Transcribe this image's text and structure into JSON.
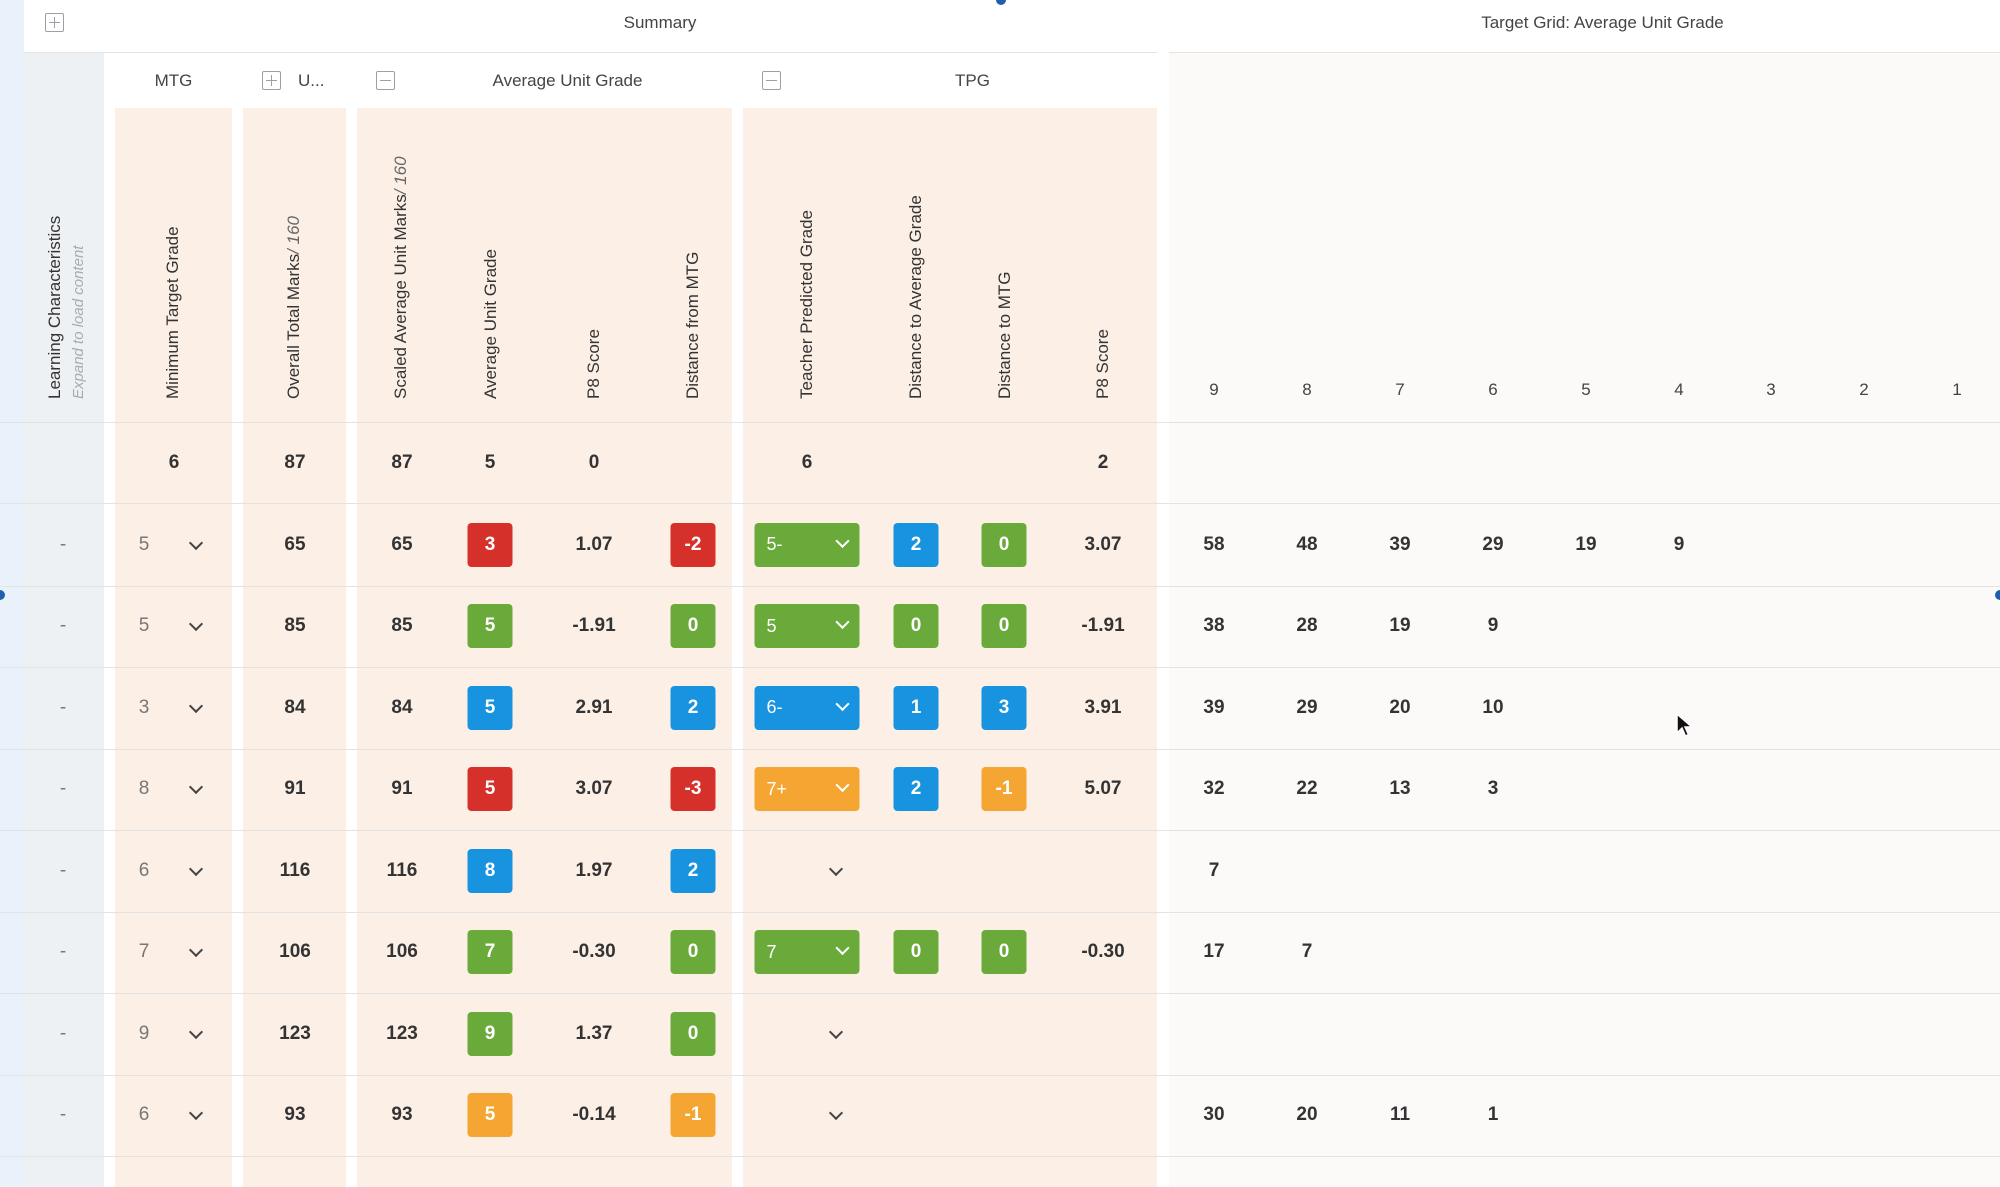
{
  "colors": {
    "red": "#d6302a",
    "green": "#6aaa3a",
    "blue": "#1793e0",
    "orange": "#f5a531"
  },
  "top_headers": {
    "summary": "Summary",
    "target_grid": "Target Grid: Average Unit Grade"
  },
  "group_headers": {
    "mtg": "MTG",
    "u": "U...",
    "avg_unit_grade": "Average Unit Grade",
    "tpg": "TPG"
  },
  "columns": {
    "learning_characteristics": "Learning Characteristics",
    "learning_hint": "Expand to load content",
    "min_target_grade": "Minimum Target Grade",
    "overall_total_marks": "Overall Total Marks",
    "overall_total_marks_suffix": "/ 160",
    "scaled_avg": "Scaled Average Unit Marks",
    "scaled_avg_suffix": "/ 160",
    "avg_unit_grade": "Average Unit Grade",
    "p8_score": "P8 Score",
    "distance_from_mtg": "Distance from MTG",
    "teacher_predicted_grade": "Teacher Predicted Grade",
    "distance_to_avg_grade": "Distance to Average Grade",
    "distance_to_mtg": "Distance to MTG",
    "p8_score_tpg": "P8 Score"
  },
  "grid_headers": [
    "9",
    "8",
    "7",
    "6",
    "5",
    "4",
    "3",
    "2",
    "1"
  ],
  "summary_row": {
    "mtg": "6",
    "overall": "87",
    "scaled": "87",
    "avg": "5",
    "p8": "0",
    "tpg": "6",
    "tpg_p8": "2"
  },
  "rows": [
    {
      "lc": "-",
      "mtg": "5",
      "overall": "65",
      "scaled": "65",
      "avg": {
        "v": "3",
        "c": "red"
      },
      "p8": "1.07",
      "dist": {
        "v": "-2",
        "c": "red"
      },
      "tpg": {
        "v": "5-",
        "c": "green"
      },
      "d_avg": {
        "v": "2",
        "c": "blue"
      },
      "d_mtg": {
        "v": "0",
        "c": "green"
      },
      "tpg_p8": "3.07",
      "grid": [
        "58",
        "48",
        "39",
        "29",
        "19",
        "9",
        "",
        "",
        ""
      ]
    },
    {
      "lc": "-",
      "mtg": "5",
      "overall": "85",
      "scaled": "85",
      "avg": {
        "v": "5",
        "c": "green"
      },
      "p8": "-1.91",
      "dist": {
        "v": "0",
        "c": "green"
      },
      "tpg": {
        "v": "5",
        "c": "green"
      },
      "d_avg": {
        "v": "0",
        "c": "green"
      },
      "d_mtg": {
        "v": "0",
        "c": "green"
      },
      "tpg_p8": "-1.91",
      "grid": [
        "38",
        "28",
        "19",
        "9",
        "",
        "",
        "",
        "",
        ""
      ]
    },
    {
      "lc": "-",
      "mtg": "3",
      "overall": "84",
      "scaled": "84",
      "avg": {
        "v": "5",
        "c": "blue"
      },
      "p8": "2.91",
      "dist": {
        "v": "2",
        "c": "blue"
      },
      "tpg": {
        "v": "6-",
        "c": "blue"
      },
      "d_avg": {
        "v": "1",
        "c": "blue"
      },
      "d_mtg": {
        "v": "3",
        "c": "blue"
      },
      "tpg_p8": "3.91",
      "grid": [
        "39",
        "29",
        "20",
        "10",
        "",
        "",
        "",
        "",
        ""
      ]
    },
    {
      "lc": "-",
      "mtg": "8",
      "overall": "91",
      "scaled": "91",
      "avg": {
        "v": "5",
        "c": "red"
      },
      "p8": "3.07",
      "dist": {
        "v": "-3",
        "c": "red"
      },
      "tpg": {
        "v": "7+",
        "c": "orange"
      },
      "d_avg": {
        "v": "2",
        "c": "blue"
      },
      "d_mtg": {
        "v": "-1",
        "c": "orange"
      },
      "tpg_p8": "5.07",
      "grid": [
        "32",
        "22",
        "13",
        "3",
        "",
        "",
        "",
        "",
        ""
      ]
    },
    {
      "lc": "-",
      "mtg": "6",
      "overall": "116",
      "scaled": "116",
      "avg": {
        "v": "8",
        "c": "blue"
      },
      "p8": "1.97",
      "dist": {
        "v": "2",
        "c": "blue"
      },
      "tpg": null,
      "d_avg": null,
      "d_mtg": null,
      "tpg_p8": "",
      "grid": [
        "7",
        "",
        "",
        "",
        "",
        "",
        "",
        "",
        ""
      ]
    },
    {
      "lc": "-",
      "mtg": "7",
      "overall": "106",
      "scaled": "106",
      "avg": {
        "v": "7",
        "c": "green"
      },
      "p8": "-0.30",
      "dist": {
        "v": "0",
        "c": "green"
      },
      "tpg": {
        "v": "7",
        "c": "green"
      },
      "d_avg": {
        "v": "0",
        "c": "green"
      },
      "d_mtg": {
        "v": "0",
        "c": "green"
      },
      "tpg_p8": "-0.30",
      "grid": [
        "17",
        "7",
        "",
        "",
        "",
        "",
        "",
        "",
        ""
      ]
    },
    {
      "lc": "-",
      "mtg": "9",
      "overall": "123",
      "scaled": "123",
      "avg": {
        "v": "9",
        "c": "green"
      },
      "p8": "1.37",
      "dist": {
        "v": "0",
        "c": "green"
      },
      "tpg": null,
      "d_avg": null,
      "d_mtg": null,
      "tpg_p8": "",
      "grid": [
        "",
        "",
        "",
        "",
        "",
        "",
        "",
        "",
        ""
      ]
    },
    {
      "lc": "-",
      "mtg": "6",
      "overall": "93",
      "scaled": "93",
      "avg": {
        "v": "5",
        "c": "orange"
      },
      "p8": "-0.14",
      "dist": {
        "v": "-1",
        "c": "orange"
      },
      "tpg": null,
      "d_avg": null,
      "d_mtg": null,
      "tpg_p8": "",
      "grid": [
        "30",
        "20",
        "11",
        "1",
        "",
        "",
        "",
        "",
        ""
      ]
    }
  ]
}
